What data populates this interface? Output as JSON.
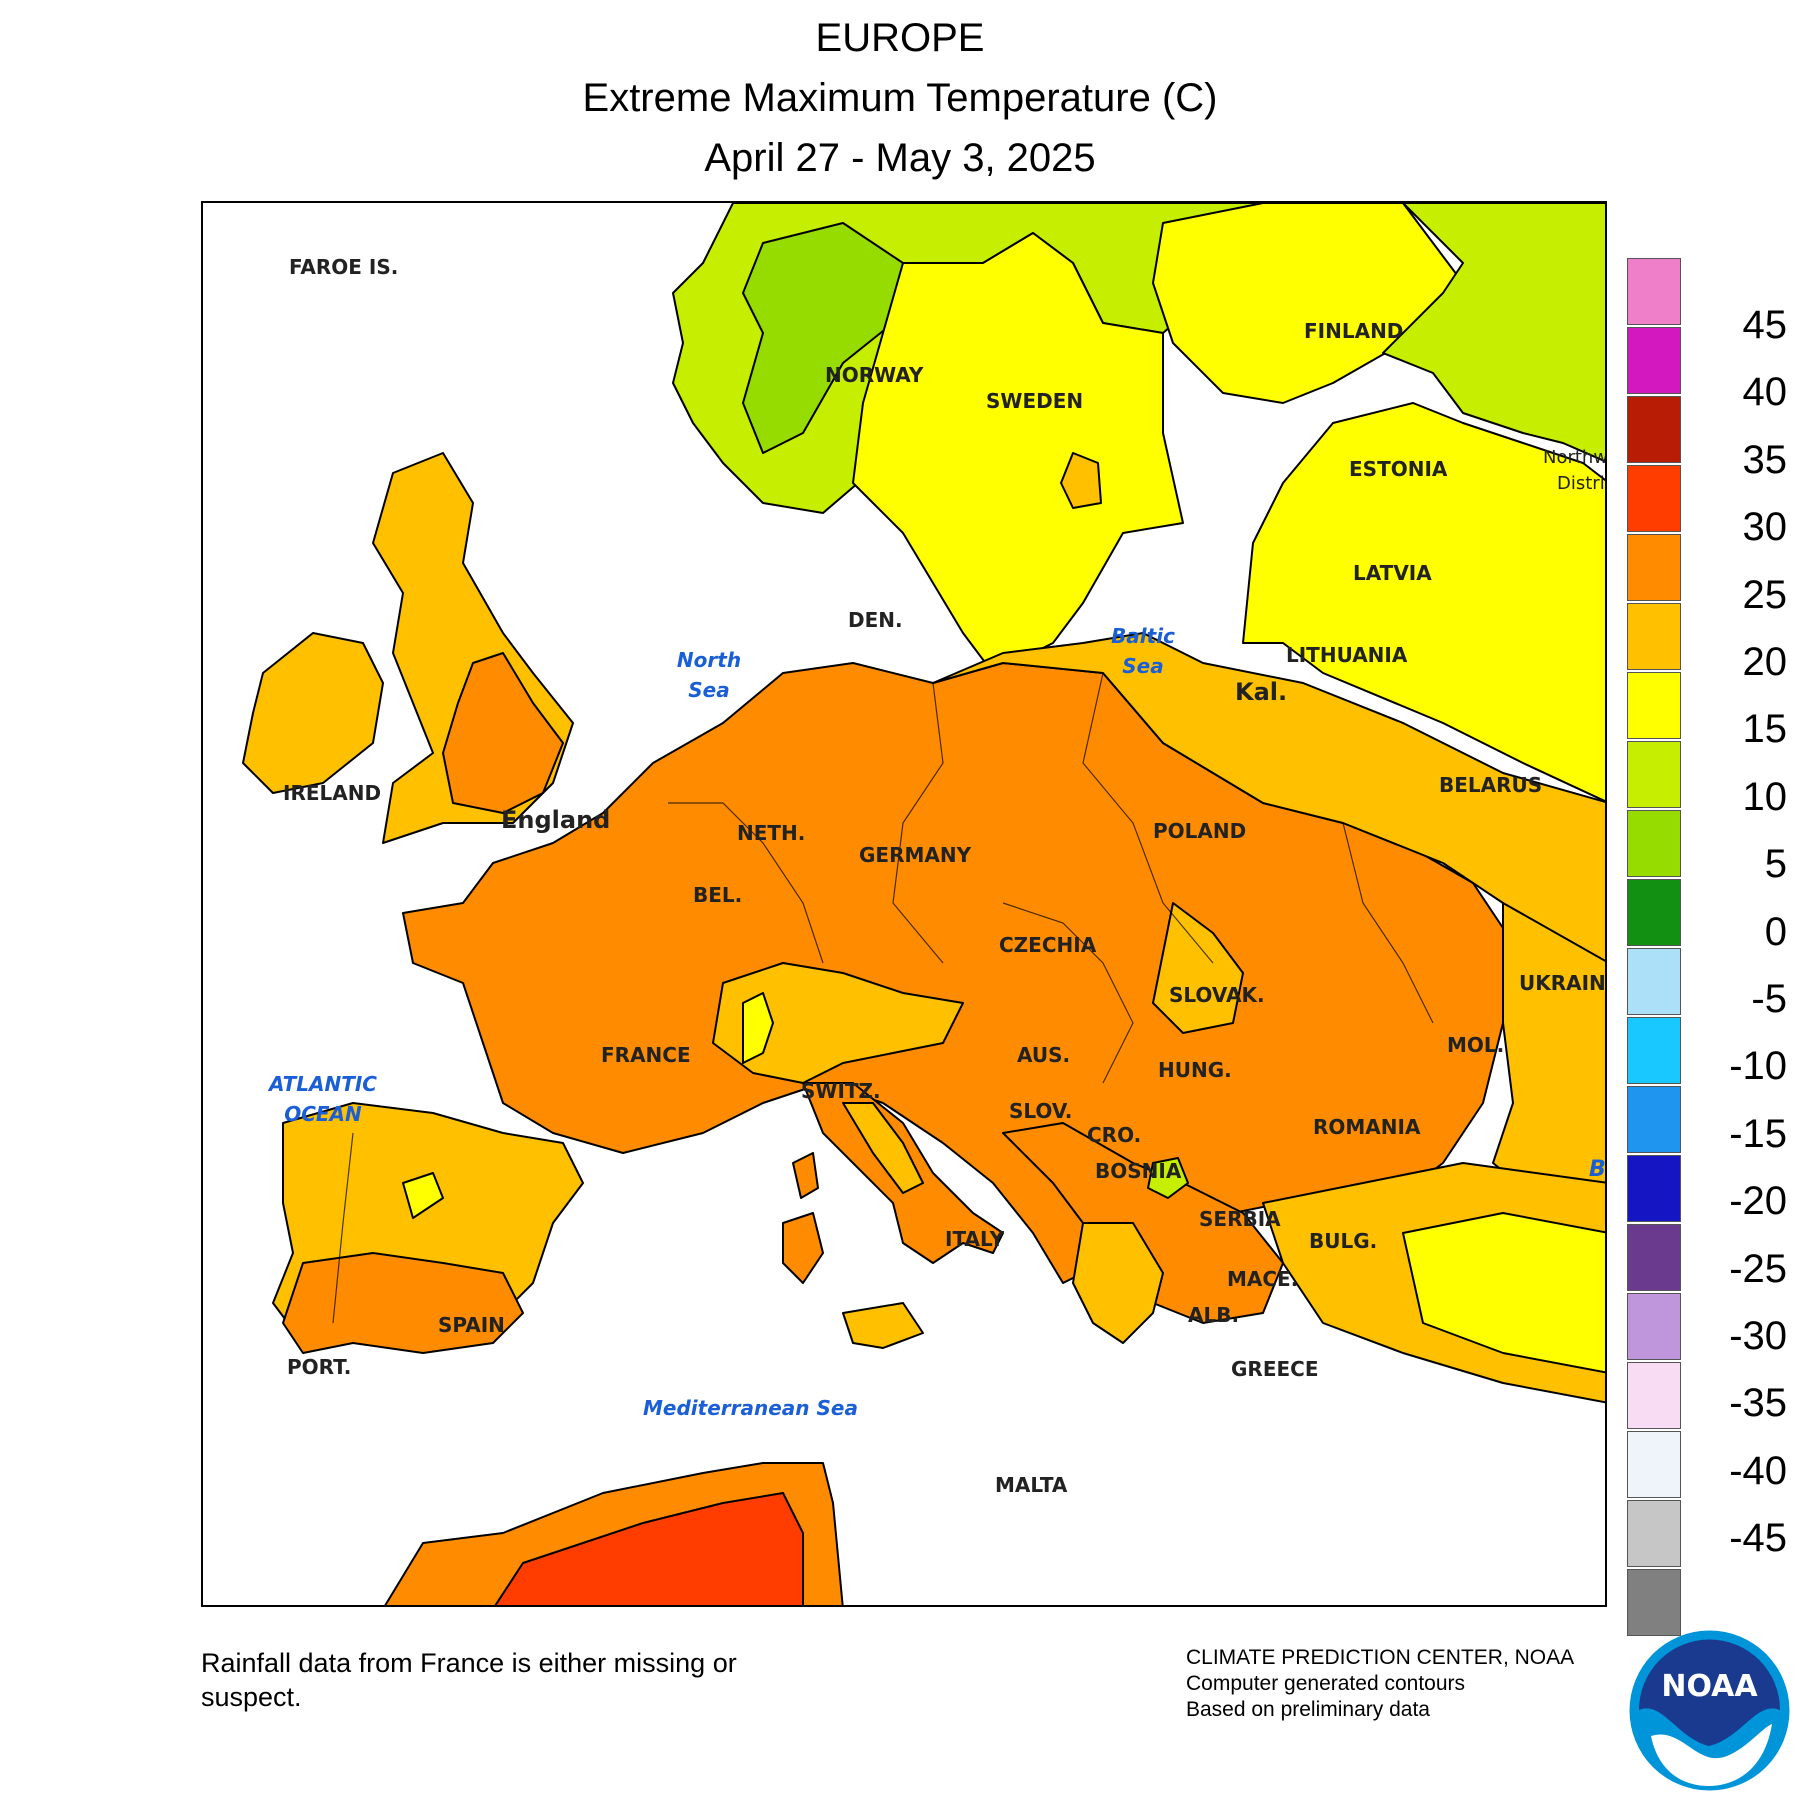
{
  "header": {
    "region": "EUROPE",
    "title": "Extreme Maximum Temperature (C)",
    "period": "April 27 - May 3, 2025"
  },
  "legend": {
    "unit": "C",
    "ticks": [
      "45",
      "40",
      "35",
      "30",
      "25",
      "20",
      "15",
      "10",
      "5",
      "0",
      "-5",
      "-10",
      "-15",
      "-20",
      "-25",
      "-30",
      "-35",
      "-40",
      "-45"
    ],
    "colors": [
      "#ef7fc8",
      "#d418c0",
      "#b81c05",
      "#ff3d00",
      "#ff8c00",
      "#ffc000",
      "#ffff00",
      "#c5ee00",
      "#96dc00",
      "#129012",
      "#ace0f8",
      "#18c8ff",
      "#2095f0",
      "#1515c4",
      "#6a3a8e",
      "#bf96db",
      "#f8dcf4",
      "#eef4fa",
      "#c6c6c6",
      "#808080"
    ]
  },
  "map": {
    "countries": [
      "FAROE IS.",
      "NORWAY",
      "SWEDEN",
      "FINLAND",
      "ESTONIA",
      "LATVIA",
      "LITHUANIA",
      "Kal.",
      "DEN.",
      "IRELAND",
      "England",
      "NETH.",
      "BEL.",
      "GERMANY",
      "POLAND",
      "BELARUS",
      "UKRAINE",
      "CZECHIA",
      "SLOVAK.",
      "AUS.",
      "SWITZ.",
      "FRANCE",
      "HUNG.",
      "MOL.",
      "ROMANIA",
      "SLOV.",
      "CRO.",
      "BOSNIA",
      "SERBIA",
      "BULG.",
      "MACE.",
      "ALB.",
      "GREECE",
      "ITALY",
      "SPAIN",
      "PORT.",
      "MALTA"
    ],
    "seas": [
      "North Sea",
      "Baltic Sea",
      "ATLANTIC OCEAN",
      "Mediterranean Sea"
    ],
    "partial_labels": [
      "Northw",
      "Distri",
      "B"
    ]
  },
  "footer": {
    "note": "Rainfall data from France is either missing or suspect.",
    "credit_line1": "CLIMATE PREDICTION CENTER, NOAA",
    "credit_line2": "Computer generated contours",
    "credit_line3": "Based on preliminary data",
    "logo_text": "NOAA"
  }
}
